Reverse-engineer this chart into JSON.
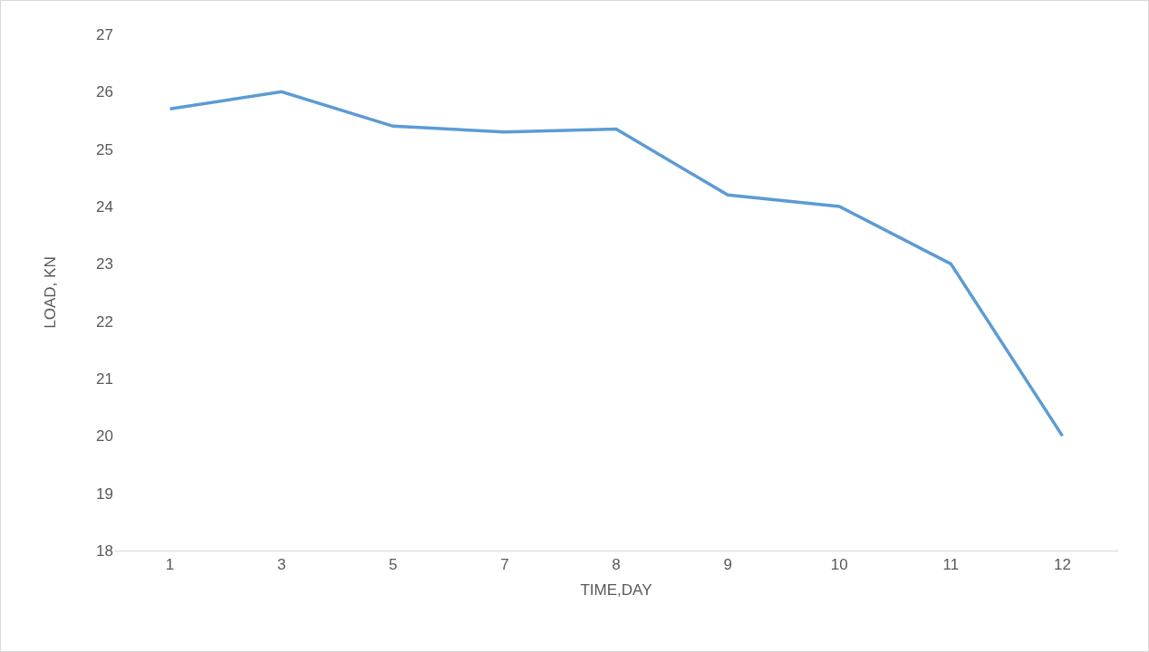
{
  "chart_data": {
    "type": "line",
    "xlabel": "TIME,DAY",
    "ylabel": "LOAD, KN",
    "categories": [
      "1",
      "3",
      "5",
      "7",
      "8",
      "9",
      "10",
      "11",
      "12"
    ],
    "series": [
      {
        "color": "#5b9bd5",
        "values": [
          25.7,
          26,
          25.4,
          25.3,
          25.35,
          24.2,
          24.0,
          23.0,
          20.0
        ]
      }
    ],
    "ylim": [
      18,
      27
    ],
    "yticks": [
      18,
      19,
      20,
      21,
      22,
      23,
      24,
      25,
      26,
      27
    ],
    "grid": false,
    "marker": "none",
    "line_style": "solid"
  }
}
